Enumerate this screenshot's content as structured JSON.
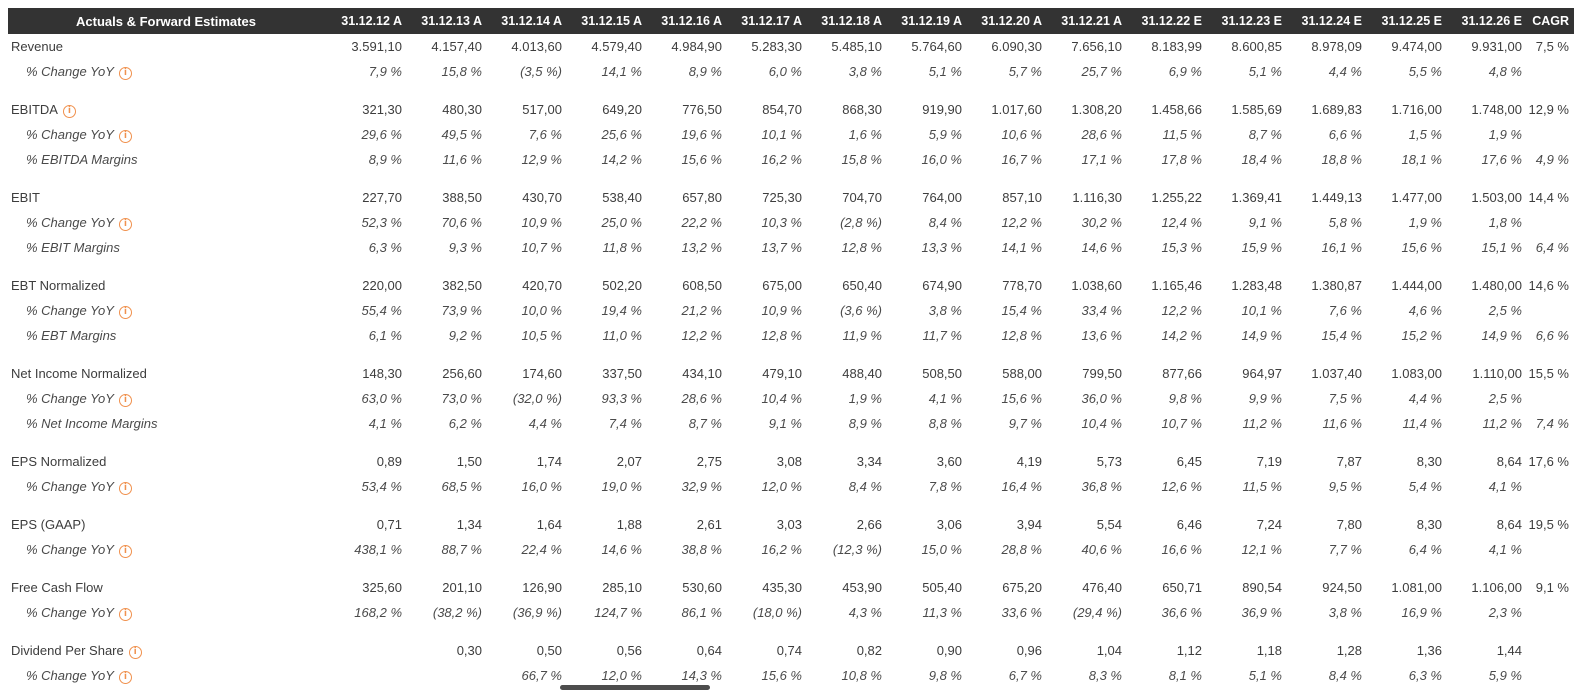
{
  "header": {
    "label": "Actuals & Forward Estimates",
    "columns": [
      "31.12.12 A",
      "31.12.13 A",
      "31.12.14 A",
      "31.12.15 A",
      "31.12.16 A",
      "31.12.17 A",
      "31.12.18 A",
      "31.12.19 A",
      "31.12.20 A",
      "31.12.21 A",
      "31.12.22 E",
      "31.12.23 E",
      "31.12.24 E",
      "31.12.25 E",
      "31.12.26 E",
      "CAGR"
    ]
  },
  "colors": {
    "header_bg": "#333333",
    "negative": "#ef5350",
    "info_icon": "#f0914e",
    "text": "#3d3d3d"
  },
  "icons": {
    "info": "info-icon"
  },
  "rows": [
    {
      "label": "Revenue",
      "type": "main",
      "info": false,
      "group_start": false,
      "values": [
        "3.591,10",
        "4.157,40",
        "4.013,60",
        "4.579,40",
        "4.984,90",
        "5.283,30",
        "5.485,10",
        "5.764,60",
        "6.090,30",
        "7.656,10",
        "8.183,99",
        "8.600,85",
        "8.978,09",
        "9.474,00",
        "9.931,00",
        "7,5 %"
      ]
    },
    {
      "label": "% Change YoY",
      "type": "sub",
      "info": true,
      "group_start": false,
      "values": [
        "7,9 %",
        "15,8 %",
        "(3,5 %)",
        "14,1 %",
        "8,9 %",
        "6,0 %",
        "3,8 %",
        "5,1 %",
        "5,7 %",
        "25,7 %",
        "6,9 %",
        "5,1 %",
        "4,4 %",
        "5,5 %",
        "4,8 %",
        ""
      ]
    },
    {
      "label": "EBITDA",
      "type": "main",
      "info": true,
      "group_start": true,
      "values": [
        "321,30",
        "480,30",
        "517,00",
        "649,20",
        "776,50",
        "854,70",
        "868,30",
        "919,90",
        "1.017,60",
        "1.308,20",
        "1.458,66",
        "1.585,69",
        "1.689,83",
        "1.716,00",
        "1.748,00",
        "12,9 %"
      ]
    },
    {
      "label": "% Change YoY",
      "type": "sub",
      "info": true,
      "group_start": false,
      "values": [
        "29,6 %",
        "49,5 %",
        "7,6 %",
        "25,6 %",
        "19,6 %",
        "10,1 %",
        "1,6 %",
        "5,9 %",
        "10,6 %",
        "28,6 %",
        "11,5 %",
        "8,7 %",
        "6,6 %",
        "1,5 %",
        "1,9 %",
        ""
      ]
    },
    {
      "label": "% EBITDA Margins",
      "type": "sub",
      "info": false,
      "group_start": false,
      "values": [
        "8,9 %",
        "11,6 %",
        "12,9 %",
        "14,2 %",
        "15,6 %",
        "16,2 %",
        "15,8 %",
        "16,0 %",
        "16,7 %",
        "17,1 %",
        "17,8 %",
        "18,4 %",
        "18,8 %",
        "18,1 %",
        "17,6 %",
        "4,9 %"
      ]
    },
    {
      "label": "EBIT",
      "type": "main",
      "info": false,
      "group_start": true,
      "values": [
        "227,70",
        "388,50",
        "430,70",
        "538,40",
        "657,80",
        "725,30",
        "704,70",
        "764,00",
        "857,10",
        "1.116,30",
        "1.255,22",
        "1.369,41",
        "1.449,13",
        "1.477,00",
        "1.503,00",
        "14,4 %"
      ]
    },
    {
      "label": "% Change YoY",
      "type": "sub",
      "info": true,
      "group_start": false,
      "values": [
        "52,3 %",
        "70,6 %",
        "10,9 %",
        "25,0 %",
        "22,2 %",
        "10,3 %",
        "(2,8 %)",
        "8,4 %",
        "12,2 %",
        "30,2 %",
        "12,4 %",
        "9,1 %",
        "5,8 %",
        "1,9 %",
        "1,8 %",
        ""
      ]
    },
    {
      "label": "% EBIT Margins",
      "type": "sub",
      "info": false,
      "group_start": false,
      "values": [
        "6,3 %",
        "9,3 %",
        "10,7 %",
        "11,8 %",
        "13,2 %",
        "13,7 %",
        "12,8 %",
        "13,3 %",
        "14,1 %",
        "14,6 %",
        "15,3 %",
        "15,9 %",
        "16,1 %",
        "15,6 %",
        "15,1 %",
        "6,4 %"
      ]
    },
    {
      "label": "EBT Normalized",
      "type": "main",
      "info": false,
      "group_start": true,
      "values": [
        "220,00",
        "382,50",
        "420,70",
        "502,20",
        "608,50",
        "675,00",
        "650,40",
        "674,90",
        "778,70",
        "1.038,60",
        "1.165,46",
        "1.283,48",
        "1.380,87",
        "1.444,00",
        "1.480,00",
        "14,6 %"
      ]
    },
    {
      "label": "% Change YoY",
      "type": "sub",
      "info": true,
      "group_start": false,
      "values": [
        "55,4 %",
        "73,9 %",
        "10,0 %",
        "19,4 %",
        "21,2 %",
        "10,9 %",
        "(3,6 %)",
        "3,8 %",
        "15,4 %",
        "33,4 %",
        "12,2 %",
        "10,1 %",
        "7,6 %",
        "4,6 %",
        "2,5 %",
        ""
      ]
    },
    {
      "label": "% EBT Margins",
      "type": "sub",
      "info": false,
      "group_start": false,
      "values": [
        "6,1 %",
        "9,2 %",
        "10,5 %",
        "11,0 %",
        "12,2 %",
        "12,8 %",
        "11,9 %",
        "11,7 %",
        "12,8 %",
        "13,6 %",
        "14,2 %",
        "14,9 %",
        "15,4 %",
        "15,2 %",
        "14,9 %",
        "6,6 %"
      ]
    },
    {
      "label": "Net Income Normalized",
      "type": "main",
      "info": false,
      "group_start": true,
      "values": [
        "148,30",
        "256,60",
        "174,60",
        "337,50",
        "434,10",
        "479,10",
        "488,40",
        "508,50",
        "588,00",
        "799,50",
        "877,66",
        "964,97",
        "1.037,40",
        "1.083,00",
        "1.110,00",
        "15,5 %"
      ]
    },
    {
      "label": "% Change YoY",
      "type": "sub",
      "info": true,
      "group_start": false,
      "values": [
        "63,0 %",
        "73,0 %",
        "(32,0 %)",
        "93,3 %",
        "28,6 %",
        "10,4 %",
        "1,9 %",
        "4,1 %",
        "15,6 %",
        "36,0 %",
        "9,8 %",
        "9,9 %",
        "7,5 %",
        "4,4 %",
        "2,5 %",
        ""
      ]
    },
    {
      "label": "% Net Income Margins",
      "type": "sub",
      "info": false,
      "group_start": false,
      "values": [
        "4,1 %",
        "6,2 %",
        "4,4 %",
        "7,4 %",
        "8,7 %",
        "9,1 %",
        "8,9 %",
        "8,8 %",
        "9,7 %",
        "10,4 %",
        "10,7 %",
        "11,2 %",
        "11,6 %",
        "11,4 %",
        "11,2 %",
        "7,4 %"
      ]
    },
    {
      "label": "EPS Normalized",
      "type": "main",
      "info": false,
      "group_start": true,
      "values": [
        "0,89",
        "1,50",
        "1,74",
        "2,07",
        "2,75",
        "3,08",
        "3,34",
        "3,60",
        "4,19",
        "5,73",
        "6,45",
        "7,19",
        "7,87",
        "8,30",
        "8,64",
        "17,6 %"
      ]
    },
    {
      "label": "% Change YoY",
      "type": "sub",
      "info": true,
      "group_start": false,
      "values": [
        "53,4 %",
        "68,5 %",
        "16,0 %",
        "19,0 %",
        "32,9 %",
        "12,0 %",
        "8,4 %",
        "7,8 %",
        "16,4 %",
        "36,8 %",
        "12,6 %",
        "11,5 %",
        "9,5 %",
        "5,4 %",
        "4,1 %",
        ""
      ]
    },
    {
      "label": "EPS (GAAP)",
      "type": "main",
      "info": false,
      "group_start": true,
      "values": [
        "0,71",
        "1,34",
        "1,64",
        "1,88",
        "2,61",
        "3,03",
        "2,66",
        "3,06",
        "3,94",
        "5,54",
        "6,46",
        "7,24",
        "7,80",
        "8,30",
        "8,64",
        "19,5 %"
      ]
    },
    {
      "label": "% Change YoY",
      "type": "sub",
      "info": true,
      "group_start": false,
      "values": [
        "438,1 %",
        "88,7 %",
        "22,4 %",
        "14,6 %",
        "38,8 %",
        "16,2 %",
        "(12,3 %)",
        "15,0 %",
        "28,8 %",
        "40,6 %",
        "16,6 %",
        "12,1 %",
        "7,7 %",
        "6,4 %",
        "4,1 %",
        ""
      ]
    },
    {
      "label": "Free Cash Flow",
      "type": "main",
      "info": false,
      "group_start": true,
      "values": [
        "325,60",
        "201,10",
        "126,90",
        "285,10",
        "530,60",
        "435,30",
        "453,90",
        "505,40",
        "675,20",
        "476,40",
        "650,71",
        "890,54",
        "924,50",
        "1.081,00",
        "1.106,00",
        "9,1 %"
      ]
    },
    {
      "label": "% Change YoY",
      "type": "sub",
      "info": true,
      "group_start": false,
      "values": [
        "168,2 %",
        "(38,2 %)",
        "(36,9 %)",
        "124,7 %",
        "86,1 %",
        "(18,0 %)",
        "4,3 %",
        "11,3 %",
        "33,6 %",
        "(29,4 %)",
        "36,6 %",
        "36,9 %",
        "3,8 %",
        "16,9 %",
        "2,3 %",
        ""
      ]
    },
    {
      "label": "Dividend Per Share",
      "type": "main",
      "info": true,
      "group_start": true,
      "values": [
        "",
        "0,30",
        "0,50",
        "0,56",
        "0,64",
        "0,74",
        "0,82",
        "0,90",
        "0,96",
        "1,04",
        "1,12",
        "1,18",
        "1,28",
        "1,36",
        "1,44",
        ""
      ]
    },
    {
      "label": "% Change YoY",
      "type": "sub",
      "info": true,
      "group_start": false,
      "values": [
        "",
        "",
        "66,7 %",
        "12,0 %",
        "14,3 %",
        "15,6 %",
        "10,8 %",
        "9,8 %",
        "6,7 %",
        "8,3 %",
        "8,1 %",
        "5,1 %",
        "8,4 %",
        "6,3 %",
        "5,9 %",
        ""
      ]
    }
  ]
}
